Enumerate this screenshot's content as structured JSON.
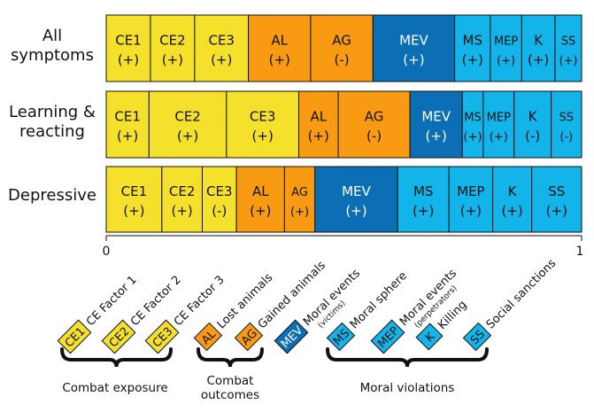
{
  "chart_data": {
    "type": "bar",
    "orientation": "horizontal-stacked",
    "xlim": [
      0,
      1
    ],
    "x_ticks": [
      "0",
      "1"
    ],
    "colors": {
      "CE1": "#f5e12c",
      "CE2": "#f5e12c",
      "CE3": "#f5e12c",
      "AL": "#f89a12",
      "AG": "#f89a12",
      "MEV": "#0c6fb6",
      "MS": "#12b4ea",
      "MEP": "#12b4ea",
      "K": "#12b4ea",
      "SS": "#12b4ea"
    },
    "rows": [
      {
        "label_lines": [
          "All",
          "symptoms"
        ],
        "segments": [
          {
            "code": "CE1",
            "value": 0.093,
            "sign": "(+)"
          },
          {
            "code": "CE2",
            "value": 0.093,
            "sign": "(+)"
          },
          {
            "code": "CE3",
            "value": 0.113,
            "sign": "(+)"
          },
          {
            "code": "AL",
            "value": 0.131,
            "sign": "(+)"
          },
          {
            "code": "AG",
            "value": 0.131,
            "sign": "(-)"
          },
          {
            "code": "MEV",
            "value": 0.172,
            "sign": "(+)"
          },
          {
            "code": "MS",
            "value": 0.075,
            "sign": "(+)"
          },
          {
            "code": "MEP",
            "value": 0.066,
            "sign": "(+)"
          },
          {
            "code": "K",
            "value": 0.07,
            "sign": "(+)"
          },
          {
            "code": "SS",
            "value": 0.056,
            "sign": "(+)"
          }
        ]
      },
      {
        "label_lines": [
          "Learning &",
          "reacting"
        ],
        "segments": [
          {
            "code": "CE1",
            "value": 0.09,
            "sign": "(+)"
          },
          {
            "code": "CE2",
            "value": 0.163,
            "sign": "(+)"
          },
          {
            "code": "CE3",
            "value": 0.152,
            "sign": "(+)"
          },
          {
            "code": "AL",
            "value": 0.083,
            "sign": "(+)"
          },
          {
            "code": "AG",
            "value": 0.151,
            "sign": "(-)"
          },
          {
            "code": "MEV",
            "value": 0.11,
            "sign": "(+)"
          },
          {
            "code": "MS",
            "value": 0.044,
            "sign": "(+)"
          },
          {
            "code": "MEP",
            "value": 0.065,
            "sign": "(+)"
          },
          {
            "code": "K",
            "value": 0.078,
            "sign": "(-)"
          },
          {
            "code": "SS",
            "value": 0.064,
            "sign": "(-)"
          }
        ]
      },
      {
        "label_lines": [
          "Depressive"
        ],
        "segments": [
          {
            "code": "CE1",
            "value": 0.117,
            "sign": "(+)"
          },
          {
            "code": "CE2",
            "value": 0.085,
            "sign": "(+)"
          },
          {
            "code": "CE3",
            "value": 0.072,
            "sign": "(-)"
          },
          {
            "code": "AL",
            "value": 0.101,
            "sign": "(+)"
          },
          {
            "code": "AG",
            "value": 0.064,
            "sign": "(+)"
          },
          {
            "code": "MEV",
            "value": 0.174,
            "sign": "(+)"
          },
          {
            "code": "MS",
            "value": 0.108,
            "sign": "(+)"
          },
          {
            "code": "MEP",
            "value": 0.092,
            "sign": "(+)"
          },
          {
            "code": "K",
            "value": 0.082,
            "sign": "(+)"
          },
          {
            "code": "SS",
            "value": 0.105,
            "sign": "(+)"
          }
        ]
      }
    ],
    "legend": [
      {
        "code": "CE1",
        "label": "CE Factor 1"
      },
      {
        "code": "CE2",
        "label": "CE Factor 2"
      },
      {
        "code": "CE3",
        "label": "CE Factor 3"
      },
      {
        "code": "AL",
        "label": "Lost animals"
      },
      {
        "code": "AG",
        "label": "Gained animals"
      },
      {
        "code": "MEV",
        "label": "Moral events",
        "sublabel": "(victims)"
      },
      {
        "code": "MS",
        "label": "Moral sphere"
      },
      {
        "code": "MEP",
        "label": "Moral events",
        "sublabel": "(perpetrators)"
      },
      {
        "code": "K",
        "label": "Killing"
      },
      {
        "code": "SS",
        "label": "Social sanctions"
      }
    ],
    "groups": [
      {
        "label_lines": [
          "Combat exposure"
        ]
      },
      {
        "label_lines": [
          "Combat",
          "outcomes"
        ]
      },
      {
        "label_lines": [
          "Moral violations"
        ]
      }
    ]
  }
}
